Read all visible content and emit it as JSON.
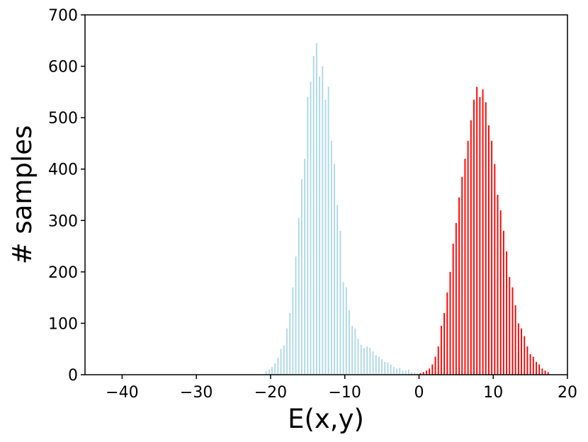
{
  "chart_data": {
    "type": "bar",
    "title": "",
    "xlabel": "E(x,y)",
    "ylabel": "# samples",
    "xlim": [
      -45,
      20
    ],
    "ylim": [
      0,
      700
    ],
    "xticks": [
      -40,
      -30,
      -20,
      -10,
      0,
      10,
      20
    ],
    "xtick_labels": [
      "−40",
      "−30",
      "−20",
      "−10",
      "0",
      "10",
      "20"
    ],
    "yticks": [
      0,
      100,
      200,
      300,
      400,
      500,
      600,
      700
    ],
    "ytick_labels": [
      "0",
      "100",
      "200",
      "300",
      "400",
      "500",
      "600",
      "700"
    ],
    "grid": false,
    "legend": "none",
    "series": [
      {
        "color": "#add8e6",
        "x": [
          -20.6,
          -20.2,
          -19.8,
          -19.4,
          -19.0,
          -18.6,
          -18.2,
          -17.8,
          -17.4,
          -17.0,
          -16.6,
          -16.2,
          -15.8,
          -15.4,
          -15.0,
          -14.6,
          -14.2,
          -13.8,
          -13.4,
          -13.0,
          -12.6,
          -12.2,
          -11.8,
          -11.4,
          -11.0,
          -10.6,
          -10.2,
          -9.8,
          -9.4,
          -9.0,
          -8.6,
          -8.2,
          -7.8,
          -7.4,
          -7.0,
          -6.6,
          -6.2,
          -5.8,
          -5.4,
          -5.0,
          -4.6,
          -4.2,
          -3.8,
          -3.4,
          -3.0,
          -2.6,
          -2.2,
          -1.8,
          -1.4,
          -1.0,
          -0.6,
          -0.2
        ],
        "values": [
          7,
          10,
          15,
          22,
          33,
          50,
          57,
          90,
          120,
          170,
          230,
          305,
          380,
          420,
          540,
          570,
          620,
          645,
          580,
          600,
          535,
          560,
          455,
          410,
          330,
          280,
          180,
          170,
          125,
          95,
          90,
          70,
          58,
          52,
          55,
          52,
          45,
          38,
          35,
          30,
          25,
          24,
          20,
          15,
          12,
          13,
          8,
          8,
          10,
          5,
          4,
          3
        ]
      },
      {
        "color": "#ff0000",
        "x": [
          0.2,
          0.6,
          1.0,
          1.4,
          1.8,
          2.2,
          2.6,
          3.0,
          3.4,
          3.8,
          4.2,
          4.6,
          5.0,
          5.4,
          5.8,
          6.2,
          6.6,
          7.0,
          7.4,
          7.8,
          8.2,
          8.6,
          9.0,
          9.4,
          9.8,
          10.2,
          10.6,
          11.0,
          11.4,
          11.8,
          12.2,
          12.6,
          13.0,
          13.4,
          13.8,
          14.2,
          14.6,
          15.0,
          15.4,
          15.8,
          16.2,
          16.6,
          17.0,
          17.4
        ],
        "values": [
          3,
          5,
          8,
          12,
          20,
          35,
          55,
          95,
          120,
          160,
          200,
          255,
          295,
          345,
          385,
          420,
          455,
          495,
          535,
          560,
          540,
          555,
          530,
          485,
          455,
          410,
          350,
          320,
          280,
          240,
          190,
          170,
          135,
          100,
          90,
          75,
          55,
          40,
          35,
          25,
          20,
          12,
          8,
          5
        ]
      }
    ]
  }
}
